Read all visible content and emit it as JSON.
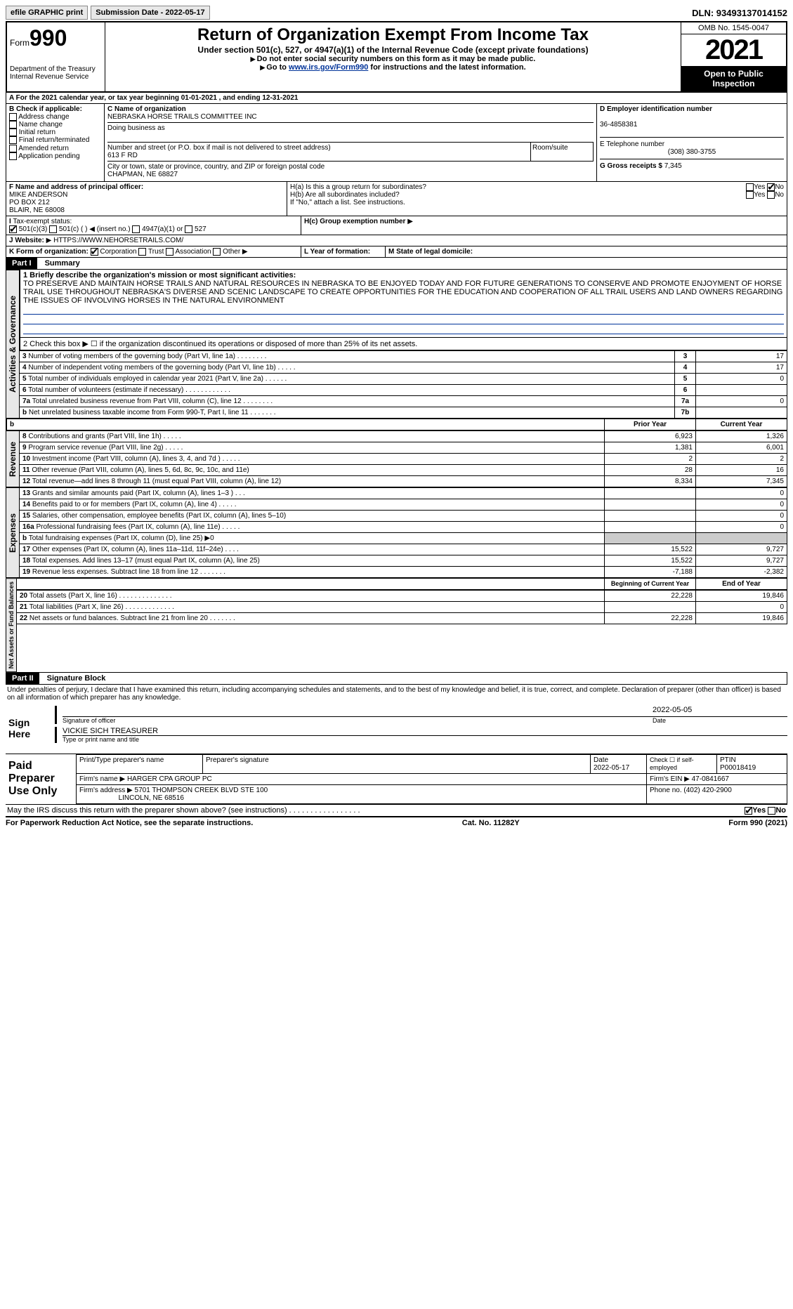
{
  "topbar": {
    "efile": "efile GRAPHIC print",
    "submission": "Submission Date - 2022-05-17",
    "dln": "DLN: 93493137014152"
  },
  "header": {
    "form_label": "Form",
    "form_num": "990",
    "dept": "Department of the Treasury",
    "irs": "Internal Revenue Service",
    "title": "Return of Organization Exempt From Income Tax",
    "subtitle": "Under section 501(c), 527, or 4947(a)(1) of the Internal Revenue Code (except private foundations)",
    "instr1": "Do not enter social security numbers on this form as it may be made public.",
    "instr2_pre": "Go to ",
    "instr2_link": "www.irs.gov/Form990",
    "instr2_post": " for instructions and the latest information.",
    "omb": "OMB No. 1545-0047",
    "year": "2021",
    "open": "Open to Public Inspection"
  },
  "period": {
    "text": "For the 2021 calendar year, or tax year beginning 01-01-2021   , and ending 12-31-2021"
  },
  "sectionB": {
    "label": "B Check if applicable:",
    "opts": [
      "Address change",
      "Name change",
      "Initial return",
      "Final return/terminated",
      "Amended return",
      "Application pending"
    ]
  },
  "sectionC": {
    "name_label": "C Name of organization",
    "name": "NEBRASKA HORSE TRAILS COMMITTEE INC",
    "dba_label": "Doing business as",
    "addr_label": "Number and street (or P.O. box if mail is not delivered to street address)",
    "addr": "613 F RD",
    "suite_label": "Room/suite",
    "city_label": "City or town, state or province, country, and ZIP or foreign postal code",
    "city": "CHAPMAN, NE  68827"
  },
  "sectionD": {
    "label": "D Employer identification number",
    "ein": "36-4858381"
  },
  "sectionE": {
    "label": "E Telephone number",
    "phone": "(308) 380-3755"
  },
  "sectionG": {
    "label": "G Gross receipts $",
    "amount": "7,345"
  },
  "sectionF": {
    "label": "F  Name and address of principal officer:",
    "name": "MIKE ANDERSON",
    "addr1": "PO BOX 212",
    "addr2": "BLAIR, NE  68008"
  },
  "sectionH": {
    "a_label": "H(a)  Is this a group return for subordinates?",
    "b_label": "H(b)  Are all subordinates included?",
    "b_note": "If \"No,\" attach a list. See instructions.",
    "c_label": "H(c)  Group exemption number",
    "yes": "Yes",
    "no": "No"
  },
  "sectionI": {
    "label": "Tax-exempt status:",
    "opt1": "501(c)(3)",
    "opt2": "501(c) (  )",
    "opt2_note": "(insert no.)",
    "opt3": "4947(a)(1) or",
    "opt4": "527"
  },
  "sectionJ": {
    "label": "Website:",
    "url": "HTTPS://WWW.NEHORSETRAILS.COM/"
  },
  "sectionK": {
    "label": "K Form of organization:",
    "opts": [
      "Corporation",
      "Trust",
      "Association",
      "Other"
    ]
  },
  "sectionL": {
    "label": "L Year of formation:"
  },
  "sectionM": {
    "label": "M State of legal domicile:"
  },
  "part1": {
    "header": "Part I",
    "title": "Summary",
    "side_act": "Activities & Governance",
    "side_rev": "Revenue",
    "side_exp": "Expenses",
    "side_net": "Net Assets or Fund Balances",
    "line1_label": "1  Briefly describe the organization's mission or most significant activities:",
    "line1_text": "TO PRESERVE AND MAINTAIN HORSE TRAILS AND NATURAL RESOURCES IN NEBRASKA TO BE ENJOYED TODAY AND FOR FUTURE GENERATIONS TO CONSERVE AND PROMOTE ENJOYMENT OF HORSE TRAIL USE THROUGHOUT NEBRASKA'S DIVERSE AND SCENIC LANDSCAPE TO CREATE OPPORTUNITIES FOR THE EDUCATION AND COOPERATION OF ALL TRAIL USERS AND LAND OWNERS REGARDING THE ISSUES OF INVOLVING HORSES IN THE NATURAL ENVIRONMENT",
    "line2": "2    Check this box ▶ ☐  if the organization discontinued its operations or disposed of more than 25% of its net assets.",
    "rows_act": [
      {
        "n": "3",
        "label": "Number of voting members of the governing body (Part VI, line 1a)   .    .    .    .    .    .    .    .",
        "num": "3",
        "val": "17"
      },
      {
        "n": "4",
        "label": "Number of independent voting members of the governing body (Part VI, line 1b)   .    .    .    .    .",
        "num": "4",
        "val": "17"
      },
      {
        "n": "5",
        "label": "Total number of individuals employed in calendar year 2021 (Part V, line 2a)    .    .    .    .    .    .",
        "num": "5",
        "val": "0"
      },
      {
        "n": "6",
        "label": "Total number of volunteers (estimate if necessary)    .    .    .    .    .    .    .    .    .    .    .    .",
        "num": "6",
        "val": ""
      },
      {
        "n": "7a",
        "label": "Total unrelated business revenue from Part VIII, column (C), line 12   .    .    .    .    .    .    .    .",
        "num": "7a",
        "val": "0"
      },
      {
        "n": "b",
        "label": "Net unrelated business taxable income from Form 990-T, Part I, line 11   .    .    .    .    .    .    .",
        "num": "7b",
        "val": ""
      }
    ],
    "col_prior": "Prior Year",
    "col_current": "Current Year",
    "rows_rev": [
      {
        "n": "8",
        "label": "Contributions and grants (Part VIII, line 1h)   .    .    .    .    .",
        "prior": "6,923",
        "curr": "1,326"
      },
      {
        "n": "9",
        "label": "Program service revenue (Part VIII, line 2g)   .    .    .    .    .",
        "prior": "1,381",
        "curr": "6,001"
      },
      {
        "n": "10",
        "label": "Investment income (Part VIII, column (A), lines 3, 4, and 7d )   .    .    .    .    .",
        "prior": "2",
        "curr": "2"
      },
      {
        "n": "11",
        "label": "Other revenue (Part VIII, column (A), lines 5, 6d, 8c, 9c, 10c, and 11e)",
        "prior": "28",
        "curr": "16"
      },
      {
        "n": "12",
        "label": "Total revenue—add lines 8 through 11 (must equal Part VIII, column (A), line 12)",
        "prior": "8,334",
        "curr": "7,345"
      }
    ],
    "rows_exp": [
      {
        "n": "13",
        "label": "Grants and similar amounts paid (Part IX, column (A), lines 1–3 )  .    .    .",
        "prior": "",
        "curr": "0"
      },
      {
        "n": "14",
        "label": "Benefits paid to or for members (Part IX, column (A), line 4)   .    .    .    .    .",
        "prior": "",
        "curr": "0"
      },
      {
        "n": "15",
        "label": "Salaries, other compensation, employee benefits (Part IX, column (A), lines 5–10)",
        "prior": "",
        "curr": "0"
      },
      {
        "n": "16a",
        "label": "Professional fundraising fees (Part IX, column (A), line 11e)   .    .    .    .    .",
        "prior": "",
        "curr": "0"
      },
      {
        "n": "b",
        "label": "Total fundraising expenses (Part IX, column (D), line 25) ▶0",
        "prior": "grey",
        "curr": "grey"
      },
      {
        "n": "17",
        "label": "Other expenses (Part IX, column (A), lines 11a–11d, 11f–24e)   .    .    .    .",
        "prior": "15,522",
        "curr": "9,727"
      },
      {
        "n": "18",
        "label": "Total expenses. Add lines 13–17 (must equal Part IX, column (A), line 25)",
        "prior": "15,522",
        "curr": "9,727"
      },
      {
        "n": "19",
        "label": "Revenue less expenses. Subtract line 18 from line 12   .    .    .    .    .    .    .",
        "prior": "-7,188",
        "curr": "-2,382"
      }
    ],
    "col_begin": "Beginning of Current Year",
    "col_end": "End of Year",
    "rows_net": [
      {
        "n": "20",
        "label": "Total assets (Part X, line 16)   .    .    .    .    .    .    .    .    .    .    .    .    .    .",
        "prior": "22,228",
        "curr": "19,846"
      },
      {
        "n": "21",
        "label": "Total liabilities (Part X, line 26)    .    .    .    .    .    .    .    .    .    .    .    .    .",
        "prior": "",
        "curr": "0"
      },
      {
        "n": "22",
        "label": "Net assets or fund balances. Subtract line 21 from line 20   .    .    .    .    .    .    .",
        "prior": "22,228",
        "curr": "19,846"
      }
    ]
  },
  "part2": {
    "header": "Part II",
    "title": "Signature Block",
    "declaration": "Under penalties of perjury, I declare that I have examined this return, including accompanying schedules and statements, and to the best of my knowledge and belief, it is true, correct, and complete. Declaration of preparer (other than officer) is based on all information of which preparer has any knowledge.",
    "sign_here": "Sign Here",
    "sig_officer": "Signature of officer",
    "sig_date": "2022-05-05",
    "date_label": "Date",
    "officer_name": "VICKIE SICH  TREASURER",
    "officer_label": "Type or print name and title",
    "paid": "Paid Preparer Use Only",
    "prep_name_label": "Print/Type preparer's name",
    "prep_sig_label": "Preparer's signature",
    "prep_date_label": "Date",
    "prep_date": "2022-05-17",
    "check_self": "Check ☐ if self-employed",
    "ptin_label": "PTIN",
    "ptin": "P00018419",
    "firm_name_label": "Firm's name   ▶",
    "firm_name": "HARGER CPA GROUP PC",
    "firm_ein_label": "Firm's EIN ▶",
    "firm_ein": "47-0841667",
    "firm_addr_label": "Firm's address ▶",
    "firm_addr1": "5701 THOMPSON CREEK BLVD STE 100",
    "firm_addr2": "LINCOLN, NE  68516",
    "firm_phone_label": "Phone no.",
    "firm_phone": "(402) 420-2900",
    "discuss": "May the IRS discuss this return with the preparer shown above? (see instructions)   .    .    .    .    .    .    .    .    .    .    .    .    .    .    .    .    ."
  },
  "footer": {
    "left": "For Paperwork Reduction Act Notice, see the separate instructions.",
    "mid": "Cat. No. 11282Y",
    "right": "Form 990 (2021)"
  }
}
